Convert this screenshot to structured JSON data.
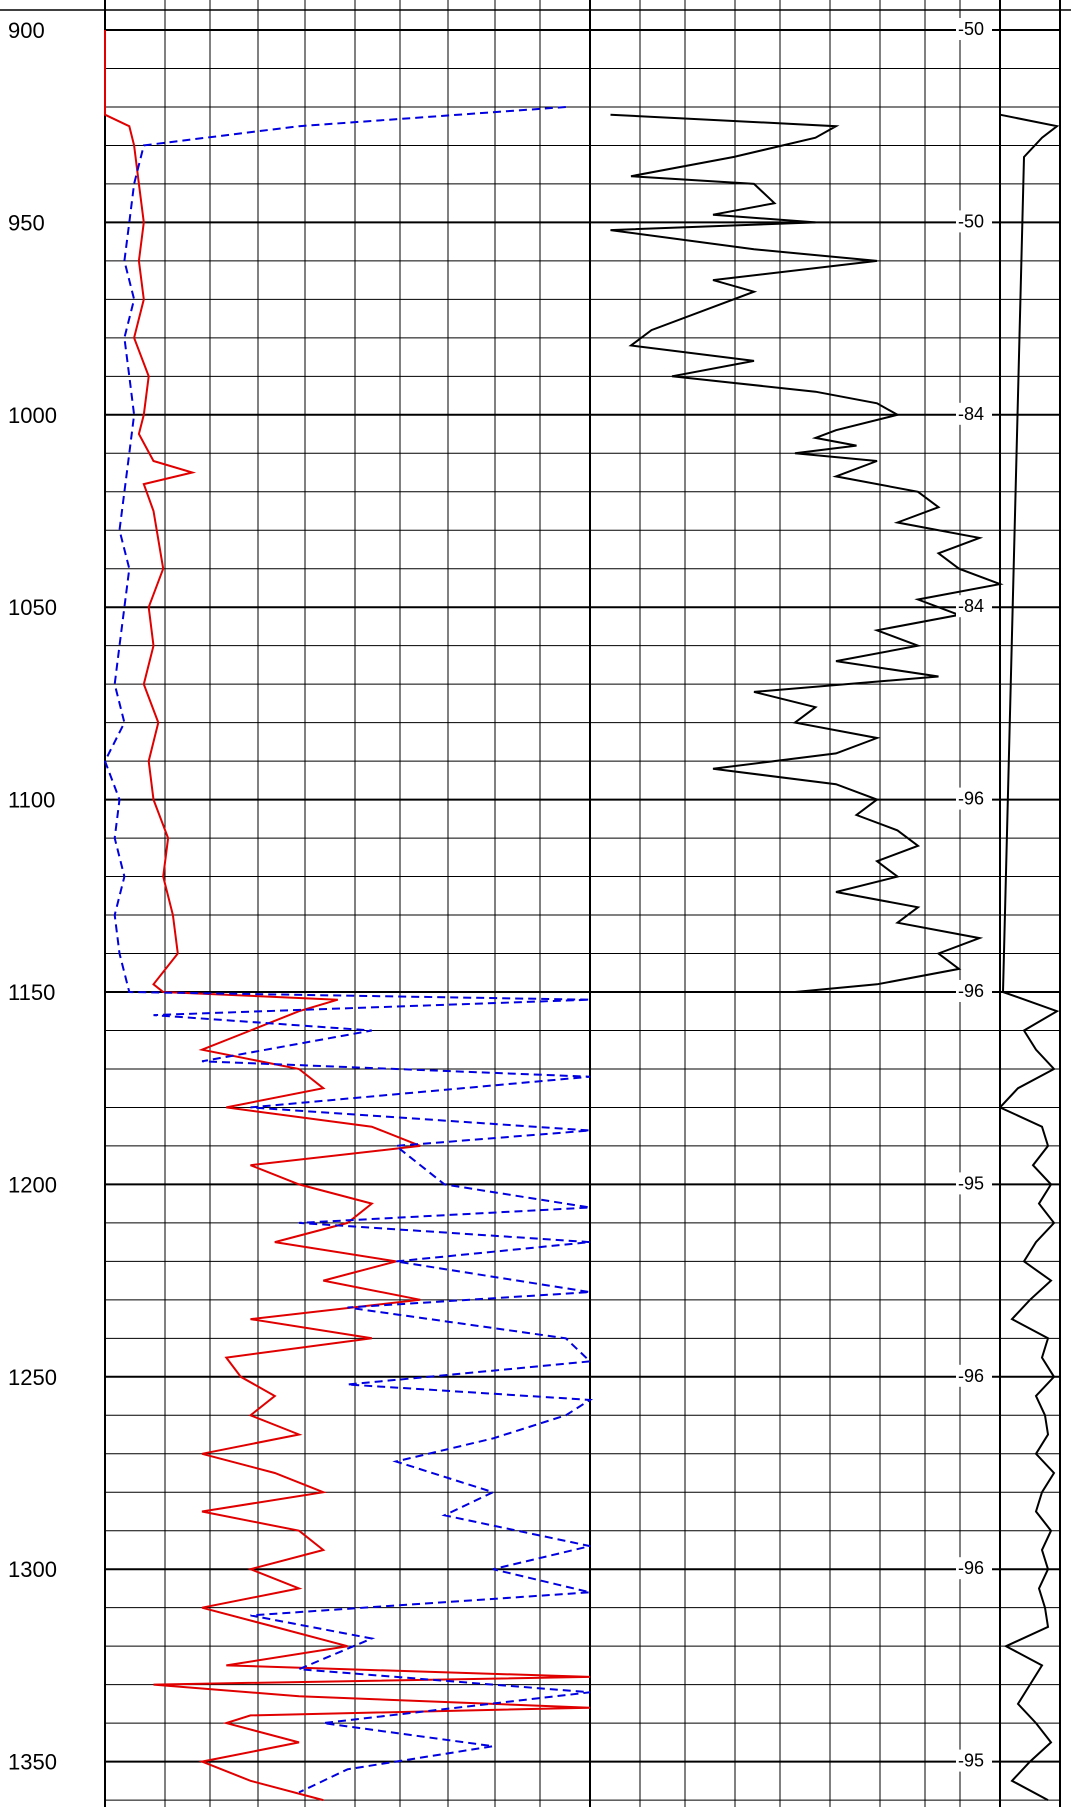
{
  "chart_data": {
    "type": "line",
    "title": "",
    "y_axis": {
      "name": "",
      "range": [
        900,
        1360
      ],
      "inverted": true,
      "tick_labels": [
        "900",
        "950",
        "1000",
        "1050",
        "1100",
        "1150",
        "1200",
        "1250",
        "1300",
        "1350"
      ]
    },
    "depth_markers": [
      {
        "depth": 900,
        "label": "-50"
      },
      {
        "depth": 950,
        "label": "-50"
      },
      {
        "depth": 1000,
        "label": "-84"
      },
      {
        "depth": 1050,
        "label": "-84"
      },
      {
        "depth": 1100,
        "label": "-96"
      },
      {
        "depth": 1150,
        "label": "-96"
      },
      {
        "depth": 1200,
        "label": "-95"
      },
      {
        "depth": 1250,
        "label": "-96"
      },
      {
        "depth": 1300,
        "label": "-96"
      },
      {
        "depth": 1350,
        "label": "-95"
      }
    ],
    "grid": true,
    "series": [
      {
        "color": "#e00000",
        "style": "solid",
        "track": 1,
        "depth": [
          900,
          922,
          925,
          930,
          940,
          950,
          960,
          970,
          980,
          990,
          1000,
          1005,
          1012,
          1015,
          1018,
          1025,
          1040,
          1050,
          1060,
          1070,
          1080,
          1090,
          1100,
          1110,
          1120,
          1130,
          1140,
          1148,
          1150,
          1152,
          1155,
          1160,
          1165,
          1170,
          1175,
          1180,
          1185,
          1190,
          1195,
          1200,
          1205,
          1210,
          1215,
          1220,
          1225,
          1230,
          1235,
          1240,
          1245,
          1250,
          1255,
          1260,
          1265,
          1270,
          1275,
          1280,
          1285,
          1290,
          1295,
          1300,
          1305,
          1310,
          1315,
          1320,
          1325,
          1328,
          1330,
          1333,
          1336,
          1338,
          1340,
          1345,
          1350,
          1355,
          1360
        ],
        "value": [
          0.0,
          0.0,
          0.05,
          0.06,
          0.07,
          0.08,
          0.07,
          0.08,
          0.06,
          0.09,
          0.08,
          0.07,
          0.1,
          0.18,
          0.08,
          0.1,
          0.12,
          0.09,
          0.1,
          0.08,
          0.11,
          0.09,
          0.1,
          0.13,
          0.12,
          0.14,
          0.15,
          0.1,
          0.12,
          0.48,
          0.4,
          0.3,
          0.2,
          0.4,
          0.45,
          0.25,
          0.55,
          0.65,
          0.3,
          0.4,
          0.55,
          0.5,
          0.35,
          0.6,
          0.45,
          0.65,
          0.3,
          0.55,
          0.25,
          0.28,
          0.35,
          0.3,
          0.4,
          0.2,
          0.35,
          0.45,
          0.2,
          0.4,
          0.45,
          0.3,
          0.4,
          0.2,
          0.35,
          0.5,
          0.25,
          1.0,
          0.1,
          0.4,
          1.0,
          0.3,
          0.25,
          0.4,
          0.2,
          0.3,
          0.45
        ]
      },
      {
        "color": "#0000e0",
        "style": "dashed",
        "track": 1,
        "depth": [
          920,
          925,
          930,
          940,
          950,
          960,
          970,
          980,
          990,
          1000,
          1010,
          1020,
          1030,
          1040,
          1050,
          1060,
          1070,
          1080,
          1090,
          1100,
          1110,
          1120,
          1130,
          1140,
          1150,
          1152,
          1156,
          1160,
          1168,
          1172,
          1180,
          1186,
          1190,
          1200,
          1206,
          1210,
          1215,
          1220,
          1228,
          1232,
          1240,
          1246,
          1252,
          1256,
          1260,
          1266,
          1272,
          1280,
          1286,
          1294,
          1300,
          1306,
          1312,
          1318,
          1326,
          1332,
          1340,
          1346,
          1352,
          1358
        ],
        "value": [
          0.95,
          0.4,
          0.08,
          0.06,
          0.05,
          0.04,
          0.06,
          0.04,
          0.05,
          0.06,
          0.05,
          0.04,
          0.03,
          0.05,
          0.04,
          0.03,
          0.02,
          0.04,
          0.0,
          0.03,
          0.02,
          0.04,
          0.02,
          0.03,
          0.05,
          1.0,
          0.1,
          0.55,
          0.2,
          1.0,
          0.3,
          1.0,
          0.6,
          0.7,
          1.0,
          0.4,
          1.0,
          0.6,
          1.0,
          0.5,
          0.95,
          1.0,
          0.5,
          1.0,
          0.95,
          0.8,
          0.6,
          0.8,
          0.7,
          1.0,
          0.8,
          1.0,
          0.3,
          0.55,
          0.4,
          1.0,
          0.45,
          0.8,
          0.5,
          0.4
        ]
      },
      {
        "color": "#000000",
        "style": "solid",
        "track": 2,
        "depth": [
          922,
          925,
          928,
          933,
          938,
          940,
          945,
          948,
          950,
          952,
          957,
          960,
          965,
          968,
          972,
          978,
          982,
          986,
          990,
          994,
          997,
          1000,
          1004,
          1006,
          1008,
          1010,
          1012,
          1016,
          1020,
          1024,
          1028,
          1032,
          1036,
          1040,
          1044,
          1048,
          1052,
          1056,
          1060,
          1064,
          1068,
          1072,
          1076,
          1080,
          1084,
          1088,
          1092,
          1096,
          1100,
          1104,
          1108,
          1112,
          1116,
          1120,
          1124,
          1128,
          1132,
          1136,
          1140,
          1144,
          1148,
          1150
        ],
        "value": [
          0.05,
          0.6,
          0.55,
          0.35,
          0.1,
          0.4,
          0.45,
          0.3,
          0.55,
          0.05,
          0.4,
          0.7,
          0.3,
          0.4,
          0.3,
          0.15,
          0.1,
          0.4,
          0.2,
          0.55,
          0.7,
          0.75,
          0.6,
          0.55,
          0.65,
          0.5,
          0.7,
          0.6,
          0.8,
          0.85,
          0.75,
          0.95,
          0.85,
          0.9,
          1.0,
          0.8,
          0.9,
          0.7,
          0.8,
          0.6,
          0.85,
          0.4,
          0.55,
          0.5,
          0.7,
          0.6,
          0.3,
          0.6,
          0.7,
          0.65,
          0.75,
          0.8,
          0.7,
          0.75,
          0.6,
          0.8,
          0.75,
          0.95,
          0.85,
          0.9,
          0.7,
          0.5
        ]
      },
      {
        "color": "#000000",
        "style": "solid",
        "track": 3,
        "depth": [
          922,
          925,
          928,
          933,
          1150,
          1155,
          1160,
          1165,
          1170,
          1175,
          1180,
          1185,
          1190,
          1195,
          1200,
          1205,
          1210,
          1215,
          1220,
          1225,
          1230,
          1235,
          1240,
          1245,
          1250,
          1255,
          1260,
          1265,
          1270,
          1275,
          1280,
          1285,
          1290,
          1295,
          1300,
          1305,
          1310,
          1315,
          1320,
          1325,
          1330,
          1335,
          1340,
          1345,
          1350,
          1355,
          1360
        ],
        "value": [
          0.0,
          0.95,
          0.7,
          0.4,
          0.05,
          0.95,
          0.4,
          0.6,
          0.9,
          0.3,
          0.0,
          0.7,
          0.8,
          0.55,
          0.85,
          0.65,
          0.9,
          0.6,
          0.4,
          0.85,
          0.5,
          0.2,
          0.8,
          0.7,
          0.9,
          0.6,
          0.75,
          0.8,
          0.6,
          0.9,
          0.7,
          0.6,
          0.85,
          0.7,
          0.8,
          0.65,
          0.75,
          0.8,
          0.1,
          0.7,
          0.5,
          0.3,
          0.6,
          0.85,
          0.5,
          0.2,
          0.8
        ]
      }
    ]
  }
}
